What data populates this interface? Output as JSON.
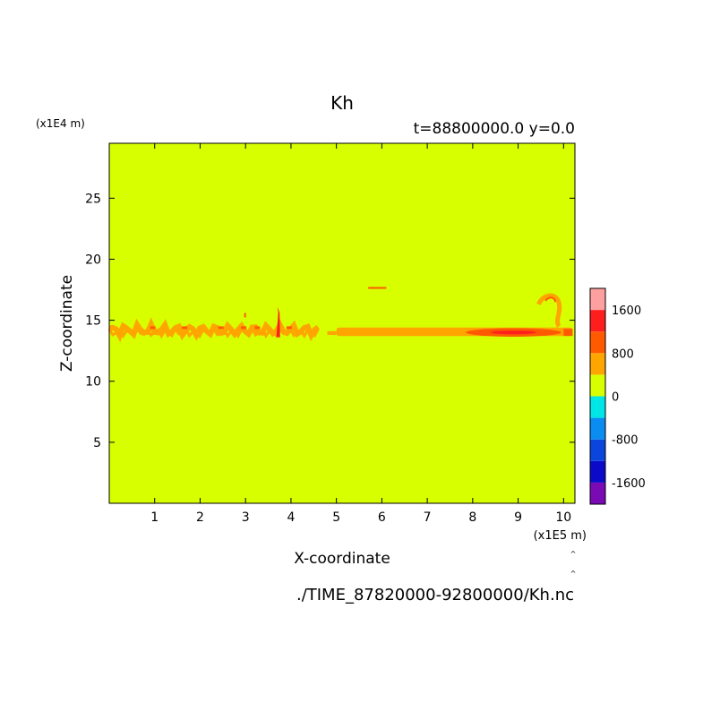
{
  "chart_data": {
    "type": "heatmap",
    "title": "Kh",
    "subtitle": "t=88800000.0 y=0.0",
    "xlabel": "X-coordinate",
    "ylabel": "Z-coordinate",
    "x_unit": "(x1E5 m)",
    "y_unit": "(x1E4 m)",
    "xlim": [
      0,
      10.25
    ],
    "ylim": [
      0,
      29.5
    ],
    "x_ticks": [
      "1",
      "2",
      "3",
      "4",
      "5",
      "6",
      "7",
      "8",
      "9",
      "10"
    ],
    "y_ticks": [
      "5",
      "10",
      "15",
      "20",
      "25"
    ],
    "footer": "./TIME_87820000-92800000/Kh.nc",
    "background_level": "0 to 400",
    "colorbar": {
      "levels": [
        -2000,
        -1600,
        -1200,
        -800,
        -400,
        0,
        400,
        800,
        1200,
        1600,
        2000
      ],
      "labels": [
        "-1600",
        "-800",
        "0",
        "800",
        "1600"
      ],
      "colors": [
        "#7a0ab4",
        "#0a0ac8",
        "#0a46dc",
        "#0a8cf0",
        "#00e6e6",
        "#d7ff00",
        "#ffa500",
        "#ff5a00",
        "#ff1e1e",
        "#ffa0a0"
      ]
    },
    "features": [
      {
        "desc": "orange turbulent layer",
        "x_range": [
          0,
          10.2
        ],
        "z_range": [
          13.5,
          14.8
        ],
        "level": "400 to 800"
      },
      {
        "desc": "strong band",
        "x_range": [
          7.9,
          10.0
        ],
        "z_range": [
          13.6,
          14.4
        ],
        "level": "800 to 1200"
      },
      {
        "desc": "plume near x=3.7",
        "x_range": [
          3.65,
          3.75
        ],
        "z_range": [
          13.8,
          16.0
        ],
        "level": "1200 to 1600"
      },
      {
        "desc": "thin segment",
        "x_range": [
          5.7,
          6.1
        ],
        "z_range": [
          17.6,
          17.7
        ],
        "level": "400 to 800"
      },
      {
        "desc": "loop near x=9.7",
        "x_range": [
          9.45,
          9.95
        ],
        "z_range": [
          14.5,
          17.1
        ],
        "level": "400 to 800"
      }
    ]
  }
}
